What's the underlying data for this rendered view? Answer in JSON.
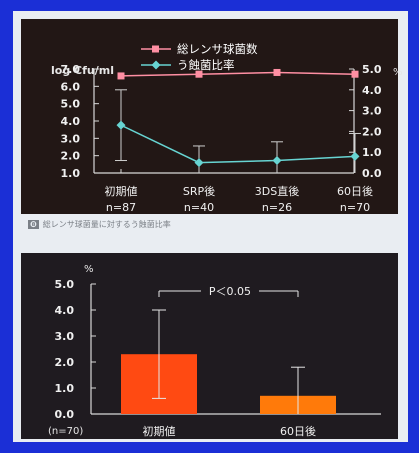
{
  "chart_data": [
    {
      "type": "line",
      "legend": [
        "総レンサ球菌数",
        "う蝕菌比率"
      ],
      "ylabel_left": "log Cfu/ml",
      "ylabel_right": "%",
      "categories": [
        "初期値",
        "SRP後",
        "3DS直後",
        "60日後"
      ],
      "n_labels": [
        "n=87",
        "n=40",
        "n=26",
        "n=70"
      ],
      "ylim_left": [
        1.0,
        7.0
      ],
      "yticks_left": [
        "1.0",
        "2.0",
        "3.0",
        "4.0",
        "5.0",
        "6.0",
        "7.0"
      ],
      "ylim_right": [
        0.0,
        5.0
      ],
      "yticks_right": [
        "0.0",
        "1.0",
        "2.0",
        "3.0",
        "4.0",
        "5.0"
      ],
      "series": [
        {
          "name": "総レンサ球菌数",
          "axis": "left",
          "color": "#ff8fa3",
          "values": [
            6.6,
            6.7,
            6.8,
            6.7
          ]
        },
        {
          "name": "う蝕菌比率",
          "axis": "right",
          "color": "#67d4d2",
          "values": [
            2.3,
            0.5,
            0.6,
            0.8
          ],
          "err_upper": [
            4.0,
            1.3,
            1.5,
            1.9
          ],
          "err_lower": [
            0.6,
            0.0,
            0.0,
            0.0
          ]
        }
      ]
    },
    {
      "type": "bar",
      "ylabel": "%",
      "categories": [
        "初期値",
        "60日後"
      ],
      "values": [
        2.3,
        0.7
      ],
      "err_upper": [
        4.0,
        1.8
      ],
      "err_lower": [
        0.6,
        0.0
      ],
      "ylim": [
        0.0,
        5.0
      ],
      "yticks": [
        "0.0",
        "1.0",
        "2.0",
        "3.0",
        "4.0",
        "5.0"
      ],
      "annotation": "P＜0.05",
      "note": "(n=70)",
      "colors": [
        "#ff4a12",
        "#ff7a0a"
      ]
    }
  ],
  "caption": {
    "num": "❽",
    "text": "総レンサ球菌量に対するう蝕菌比率"
  }
}
